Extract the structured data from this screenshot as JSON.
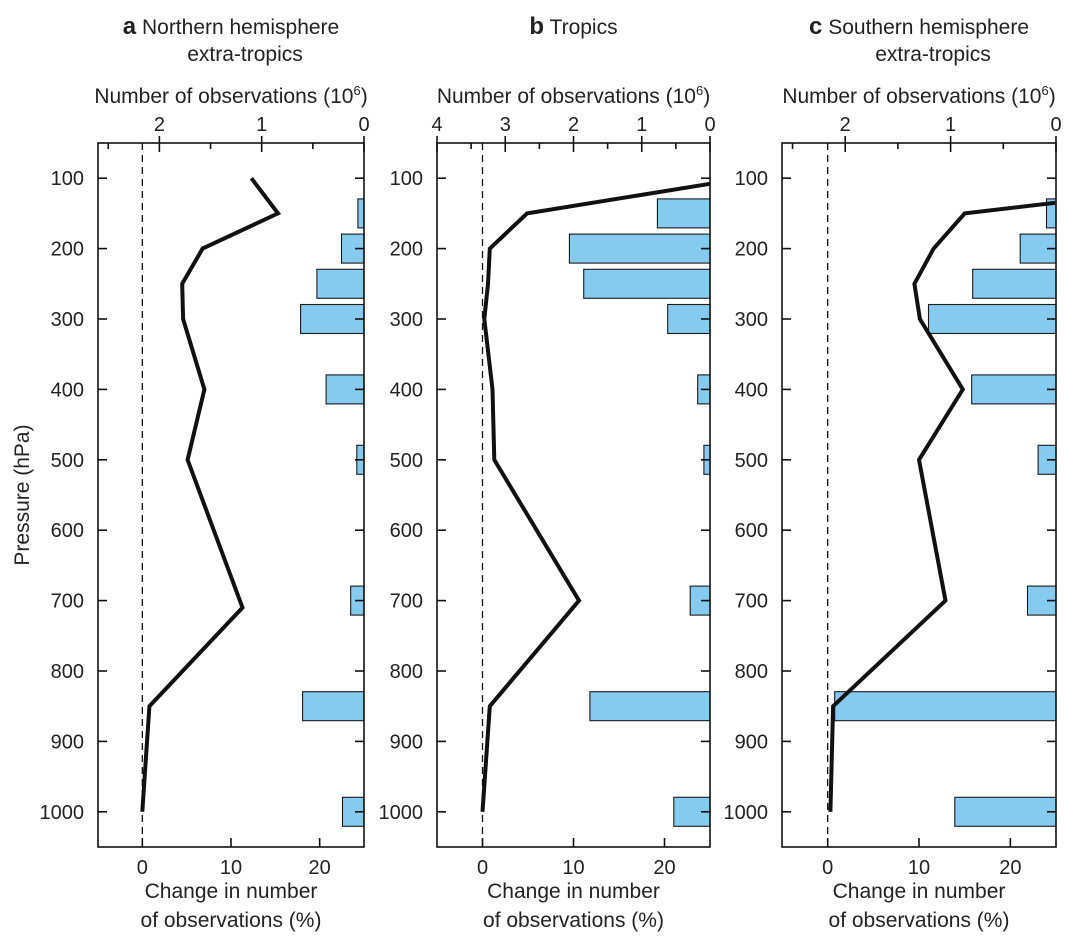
{
  "chart_data": [
    {
      "type": "bar+line",
      "letter": "a",
      "title_lines": [
        "Northern hemisphere",
        "extra-tropics"
      ],
      "top_axis_label": "Number of observations (10",
      "top_axis_exp": "6",
      "top_axis_close": ")",
      "bottom_axis_label_lines": [
        "Change in number",
        "of observations (%)"
      ],
      "ylabel": "Pressure (hPa)",
      "y_ticks": [
        100,
        200,
        300,
        400,
        500,
        600,
        700,
        800,
        900,
        1000
      ],
      "y_ticks_labels": [
        "100",
        "200",
        "300",
        "400",
        "500",
        "600",
        "700",
        "800",
        "900",
        "1000"
      ],
      "ylim": [
        50,
        1050
      ],
      "y_reversed": true,
      "x_bottom_ticks": [
        0,
        10,
        20
      ],
      "x_bottom_ticks_labels": [
        "0",
        "10",
        "20"
      ],
      "x_bottom_lim": [
        -5,
        25
      ],
      "x_top_ticks": [
        2,
        1,
        0
      ],
      "x_top_ticks_labels": [
        "2",
        "1",
        "0"
      ],
      "x_top_minor_ticks": [
        2.5,
        1.5,
        0.5
      ],
      "x_top_lim": [
        2.6,
        0
      ],
      "zero_reference_line": 0,
      "bars": {
        "name": "Number of observations",
        "color": "#87CAEF",
        "pressure": [
          150,
          200,
          250,
          300,
          400,
          500,
          700,
          850,
          1000
        ],
        "values": [
          0.06,
          0.22,
          0.46,
          0.62,
          0.37,
          0.07,
          0.13,
          0.6,
          0.21
        ]
      },
      "line": {
        "name": "Change in number of observations",
        "color": "#111111",
        "points": [
          [
            12.3,
            100
          ],
          [
            15.3,
            150
          ],
          [
            6.8,
            200
          ],
          [
            4.5,
            250
          ],
          [
            4.6,
            300
          ],
          [
            7.0,
            400
          ],
          [
            5.1,
            500
          ],
          [
            11.3,
            710
          ],
          [
            0.8,
            850
          ],
          [
            0.0,
            1000
          ]
        ]
      }
    },
    {
      "type": "bar+line",
      "letter": "b",
      "title_lines": [
        "Tropics"
      ],
      "top_axis_label": "Number of observations (10",
      "top_axis_exp": "6",
      "top_axis_close": ")",
      "bottom_axis_label_lines": [
        "Change in number",
        "of observations (%)"
      ],
      "ylabel": "",
      "y_ticks": [
        100,
        200,
        300,
        400,
        500,
        600,
        700,
        800,
        900,
        1000
      ],
      "y_ticks_labels": [
        "100",
        "200",
        "300",
        "400",
        "500",
        "600",
        "700",
        "800",
        "900",
        "1000"
      ],
      "ylim": [
        50,
        1050
      ],
      "y_reversed": true,
      "x_bottom_ticks": [
        0,
        10,
        20
      ],
      "x_bottom_ticks_labels": [
        "0",
        "10",
        "20"
      ],
      "x_bottom_lim": [
        -5,
        25
      ],
      "x_top_ticks": [
        4,
        3,
        2,
        1,
        0
      ],
      "x_top_ticks_labels": [
        "4",
        "3",
        "2",
        "1",
        "0"
      ],
      "x_top_minor_ticks": [
        3.5,
        2.5,
        1.5,
        0.5
      ],
      "x_top_lim": [
        4,
        0
      ],
      "zero_reference_line": 0,
      "bars": {
        "name": "Number of observations",
        "color": "#87CAEF",
        "pressure": [
          150,
          200,
          250,
          300,
          400,
          500,
          700,
          850,
          1000
        ],
        "values": [
          0.77,
          2.06,
          1.85,
          0.62,
          0.18,
          0.09,
          0.29,
          1.76,
          0.53
        ]
      },
      "line": {
        "name": "Change in number of observations",
        "color": "#111111",
        "points": [
          [
            25.0,
            108
          ],
          [
            4.9,
            150
          ],
          [
            0.8,
            200
          ],
          [
            0.6,
            250
          ],
          [
            0.2,
            300
          ],
          [
            1.1,
            400
          ],
          [
            1.3,
            500
          ],
          [
            10.6,
            700
          ],
          [
            0.8,
            850
          ],
          [
            0.0,
            1000
          ]
        ]
      }
    },
    {
      "type": "bar+line",
      "letter": "c",
      "title_lines": [
        "Southern hemisphere",
        "extra-tropics"
      ],
      "top_axis_label": "Number of observations (10",
      "top_axis_exp": "6",
      "top_axis_close": ")",
      "bottom_axis_label_lines": [
        "Change in number",
        "of observations (%)"
      ],
      "ylabel": "",
      "y_ticks": [
        100,
        200,
        300,
        400,
        500,
        600,
        700,
        800,
        900,
        1000
      ],
      "y_ticks_labels": [
        "100",
        "200",
        "300",
        "400",
        "500",
        "600",
        "700",
        "800",
        "900",
        "1000"
      ],
      "ylim": [
        50,
        1050
      ],
      "y_reversed": true,
      "x_bottom_ticks": [
        0,
        10,
        20
      ],
      "x_bottom_ticks_labels": [
        "0",
        "10",
        "20"
      ],
      "x_bottom_lim": [
        -5,
        25
      ],
      "x_top_ticks": [
        2,
        1,
        0
      ],
      "x_top_ticks_labels": [
        "2",
        "1",
        "0"
      ],
      "x_top_minor_ticks": [
        2.5,
        1.5,
        0.5
      ],
      "x_top_lim": [
        2.6,
        0
      ],
      "zero_reference_line": 0,
      "bars": {
        "name": "Number of observations",
        "color": "#87CAEF",
        "pressure": [
          150,
          200,
          250,
          300,
          400,
          500,
          700,
          850,
          1000
        ],
        "values": [
          0.09,
          0.34,
          0.79,
          1.21,
          0.8,
          0.17,
          0.27,
          2.1,
          0.96
        ]
      },
      "line": {
        "name": "Change in number of observations",
        "color": "#111111",
        "points": [
          [
            24.9,
            135
          ],
          [
            15.0,
            150
          ],
          [
            11.6,
            200
          ],
          [
            9.5,
            250
          ],
          [
            10.1,
            300
          ],
          [
            14.8,
            400
          ],
          [
            10.0,
            500
          ],
          [
            12.9,
            700
          ],
          [
            0.6,
            850
          ],
          [
            0.3,
            1000
          ]
        ]
      }
    }
  ]
}
